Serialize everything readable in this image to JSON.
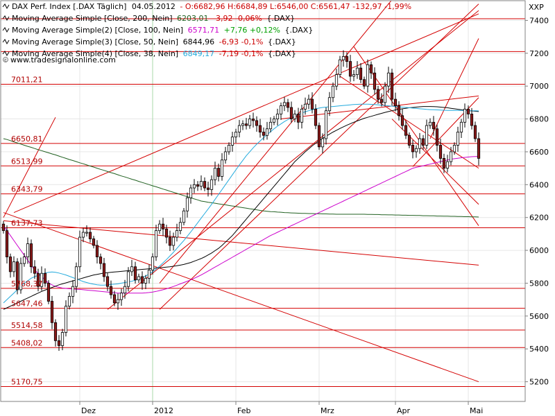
{
  "chart_data": {
    "type": "candlestick",
    "axis_unit_label": "XXP",
    "ylim": [
      5080,
      7520
    ],
    "y_ticks": [
      5200,
      5400,
      5600,
      5800,
      6000,
      6200,
      6400,
      6600,
      6800,
      7000,
      7200,
      7400
    ],
    "x_ticks": [
      {
        "label": "Dez",
        "index": 22
      },
      {
        "label": "2012",
        "index": 43
      },
      {
        "label": "Feb",
        "index": 67
      },
      {
        "label": "Mrz",
        "index": 91
      },
      {
        "label": "Apr",
        "index": 113
      },
      {
        "label": "Mai",
        "index": 134
      }
    ],
    "n_bars": 138,
    "legend": {
      "main": {
        "name": "DAX Perf. Index [.DAX Täglich]",
        "date": "04.05.2012",
        "values": "- O:6682,96 H:6684,89 L:6546,00 C:6561,47 -132,97 -1,99%"
      },
      "ma": [
        {
          "name": "Moving Average Simple [Close, 200, Nein]",
          "value": "6203,01",
          "change": "-3,92 -0,06%",
          "suffix": "{.DAX}",
          "color": "#206020",
          "change_color": "#cc0000"
        },
        {
          "name": "Moving Average Simple(2) [Close, 100, Nein]",
          "value": "6571,71",
          "change": "+7,76 +0,12%",
          "suffix": "{.DAX}",
          "color": "#cc00cc",
          "change_color": "#00a000"
        },
        {
          "name": "Moving Average Simple(3) [Close, 50, Nein]",
          "value": "6844,96",
          "change": "-6,93 -0,1%",
          "suffix": "{.DAX}",
          "color": "#000000",
          "change_color": "#cc0000"
        },
        {
          "name": "Moving Average Simple(4) [Close, 38, Nein]",
          "value": "6849,17",
          "change": "-7,19 -0,1%",
          "suffix": "{.DAX}",
          "color": "#22aadd",
          "change_color": "#cc0000"
        }
      ]
    },
    "website": "www.tradesignalonline.com",
    "horizontal_levels": [
      {
        "label": "7011,21",
        "value": 7011.21
      },
      {
        "label": "6650,81",
        "value": 6650.81
      },
      {
        "label": "6513,99",
        "value": 6513.99
      },
      {
        "label": "6343,79",
        "value": 6343.79
      },
      {
        "label": "6137,73",
        "value": 6137.73
      },
      {
        "label": "5768,37",
        "value": 5768.37
      },
      {
        "label": "5647,46",
        "value": 5647.46
      },
      {
        "label": "5514,58",
        "value": 5514.58
      },
      {
        "label": "5408,02",
        "value": 5408.02
      },
      {
        "label": "5170,75",
        "value": 5170.75
      }
    ],
    "extra_horizontal_lines": [
      7210,
      7410
    ],
    "trendlines": [
      {
        "from": [
          0,
          6180
        ],
        "to": [
          137,
          5910
        ]
      },
      {
        "from": [
          0,
          6230
        ],
        "to": [
          137,
          5200
        ]
      },
      {
        "from": [
          3,
          6230
        ],
        "to": [
          137,
          7440
        ]
      },
      {
        "from": [
          0,
          6200
        ],
        "to": [
          15,
          6810
        ]
      },
      {
        "from": [
          30,
          5640
        ],
        "to": [
          137,
          7460
        ]
      },
      {
        "from": [
          45,
          5640
        ],
        "to": [
          137,
          7500
        ]
      },
      {
        "from": [
          45,
          5800
        ],
        "to": [
          137,
          8170
        ]
      },
      {
        "from": [
          80,
          6800
        ],
        "to": [
          137,
          6940
        ]
      },
      {
        "from": [
          101,
          7240
        ],
        "to": [
          137,
          6150
        ]
      },
      {
        "from": [
          97,
          7060
        ],
        "to": [
          137,
          6500
        ]
      },
      {
        "from": [
          112,
          6800
        ],
        "to": [
          137,
          6280
        ]
      },
      {
        "from": [
          118,
          6510
        ],
        "to": [
          137,
          6930
        ]
      },
      {
        "from": [
          123,
          6680
        ],
        "to": [
          137,
          7290
        ]
      }
    ],
    "series": [
      {
        "name": "close",
        "values": [
          6120,
          5960,
          5870,
          5930,
          5760,
          5920,
          5960,
          6040,
          5900,
          5860,
          5780,
          5860,
          5800,
          5690,
          5560,
          5450,
          5420,
          5500,
          5660,
          5720,
          5780,
          5900,
          6080,
          6110,
          6110,
          6070,
          6030,
          5960,
          5920,
          5840,
          5780,
          5730,
          5680,
          5700,
          5740,
          5780,
          5870,
          5900,
          5820,
          5840,
          5800,
          5830,
          5880,
          5960,
          6120,
          6160,
          6130,
          6080,
          6030,
          6080,
          6120,
          6170,
          6240,
          6320,
          6380,
          6400,
          6390,
          6420,
          6380,
          6370,
          6430,
          6500,
          6450,
          6550,
          6600,
          6640,
          6690,
          6720,
          6760,
          6770,
          6760,
          6800,
          6790,
          6760,
          6720,
          6700,
          6740,
          6780,
          6800,
          6830,
          6880,
          6900,
          6870,
          6800,
          6830,
          6780,
          6860,
          6890,
          6920,
          6860,
          6760,
          6630,
          6680,
          6850,
          6930,
          7000,
          7070,
          7160,
          7180,
          7150,
          7060,
          7070,
          7110,
          7040,
          7000,
          7130,
          7080,
          6980,
          6920,
          6900,
          7000,
          7080,
          6920,
          6880,
          6820,
          6760,
          6700,
          6640,
          6600,
          6620,
          6680,
          6640,
          6760,
          6780,
          6740,
          6640,
          6560,
          6500,
          6540,
          6600,
          6640,
          6720,
          6780,
          6860,
          6830,
          6760,
          6680,
          6560
        ]
      },
      {
        "name": "ma200",
        "values": [
          6680,
          6675,
          6668,
          6660,
          6654,
          6647,
          6640,
          6633,
          6627,
          6620,
          6613,
          6607,
          6600,
          6594,
          6587,
          6581,
          6574,
          6567,
          6560,
          6553,
          6547,
          6540,
          6533,
          6527,
          6520,
          6513,
          6507,
          6500,
          6493,
          6487,
          6480,
          6473,
          6467,
          6460,
          6453,
          6447,
          6440,
          6433,
          6427,
          6420,
          6413,
          6407,
          6400,
          6393,
          6387,
          6380,
          6373,
          6367,
          6360,
          6353,
          6347,
          6340,
          6333,
          6327,
          6320,
          6313,
          6307,
          6300,
          6297,
          6293,
          6290,
          6287,
          6283,
          6280,
          6277,
          6273,
          6270,
          6267,
          6263,
          6260,
          6257,
          6253,
          6250,
          6247,
          6243,
          6240,
          6238,
          6236,
          6235,
          6233,
          6232,
          6230,
          6229,
          6228,
          6227,
          6226,
          6225,
          6225,
          6224,
          6224,
          6223,
          6223,
          6222,
          6222,
          6221,
          6221,
          6220,
          6220,
          6220,
          6220,
          6220,
          6220,
          6220,
          6220,
          6220,
          6219,
          6219,
          6218,
          6218,
          6217,
          6217,
          6216,
          6216,
          6215,
          6215,
          6214,
          6214,
          6213,
          6213,
          6212,
          6212,
          6211,
          6211,
          6210,
          6210,
          6209,
          6209,
          6208,
          6208,
          6207,
          6207,
          6206,
          6206,
          6205,
          6205,
          6204,
          6204,
          6203
        ]
      },
      {
        "name": "ma100",
        "values": [
          6150,
          6120,
          6090,
          6060,
          6030,
          6000,
          5970,
          5940,
          5910,
          5880,
          5860,
          5840,
          5820,
          5800,
          5790,
          5780,
          5775,
          5770,
          5768,
          5766,
          5765,
          5763,
          5762,
          5760,
          5758,
          5756,
          5754,
          5752,
          5750,
          5748,
          5746,
          5744,
          5742,
          5740,
          5740,
          5740,
          5740,
          5740,
          5740,
          5740,
          5740,
          5741,
          5743,
          5746,
          5750,
          5755,
          5760,
          5766,
          5773,
          5780,
          5788,
          5796,
          5804,
          5812,
          5820,
          5830,
          5840,
          5850,
          5862,
          5874,
          5886,
          5898,
          5910,
          5922,
          5934,
          5946,
          5958,
          5970,
          5982,
          5994,
          6006,
          6018,
          6030,
          6042,
          6054,
          6066,
          6078,
          6090,
          6100,
          6110,
          6120,
          6130,
          6140,
          6150,
          6160,
          6170,
          6180,
          6190,
          6200,
          6210,
          6220,
          6230,
          6240,
          6250,
          6260,
          6270,
          6280,
          6290,
          6300,
          6310,
          6320,
          6330,
          6340,
          6350,
          6360,
          6370,
          6380,
          6390,
          6400,
          6410,
          6420,
          6430,
          6440,
          6450,
          6460,
          6470,
          6480,
          6490,
          6500,
          6505,
          6510,
          6515,
          6520,
          6525,
          6530,
          6535,
          6540,
          6545,
          6550,
          6555,
          6558,
          6561,
          6564,
          6566,
          6568,
          6570,
          6571,
          6572
        ]
      },
      {
        "name": "ma50",
        "values": [
          5640,
          5650,
          5660,
          5670,
          5680,
          5690,
          5700,
          5710,
          5720,
          5730,
          5740,
          5750,
          5758,
          5766,
          5774,
          5782,
          5790,
          5796,
          5802,
          5808,
          5814,
          5820,
          5826,
          5832,
          5838,
          5844,
          5850,
          5854,
          5858,
          5862,
          5864,
          5866,
          5868,
          5870,
          5872,
          5874,
          5876,
          5878,
          5880,
          5882,
          5884,
          5886,
          5888,
          5890,
          5892,
          5894,
          5896,
          5898,
          5900,
          5903,
          5906,
          5910,
          5914,
          5920,
          5926,
          5934,
          5942,
          5950,
          5960,
          5972,
          5984,
          5998,
          6012,
          6030,
          6050,
          6070,
          6090,
          6115,
          6140,
          6165,
          6190,
          6215,
          6240,
          6265,
          6290,
          6315,
          6340,
          6365,
          6390,
          6415,
          6440,
          6465,
          6490,
          6515,
          6540,
          6560,
          6580,
          6600,
          6618,
          6636,
          6652,
          6668,
          6682,
          6695,
          6708,
          6720,
          6731,
          6742,
          6752,
          6762,
          6771,
          6780,
          6788,
          6796,
          6804,
          6810,
          6816,
          6822,
          6828,
          6834,
          6840,
          6845,
          6850,
          6855,
          6858,
          6862,
          6865,
          6868,
          6870,
          6872,
          6874,
          6876,
          6876,
          6876,
          6875,
          6874,
          6872,
          6870,
          6868,
          6865,
          6862,
          6859,
          6856,
          6853,
          6851,
          6849,
          6847,
          6845
        ]
      },
      {
        "name": "ma38",
        "values": [
          5680,
          5700,
          5720,
          5740,
          5760,
          5780,
          5800,
          5815,
          5830,
          5840,
          5848,
          5856,
          5862,
          5866,
          5868,
          5866,
          5862,
          5856,
          5850,
          5842,
          5834,
          5826,
          5818,
          5810,
          5804,
          5798,
          5794,
          5790,
          5788,
          5788,
          5790,
          5792,
          5794,
          5796,
          5800,
          5804,
          5808,
          5812,
          5818,
          5826,
          5834,
          5844,
          5856,
          5870,
          5886,
          5904,
          5924,
          5944,
          5966,
          5988,
          6012,
          6036,
          6060,
          6086,
          6112,
          6140,
          6168,
          6196,
          6224,
          6252,
          6280,
          6310,
          6340,
          6370,
          6400,
          6430,
          6460,
          6490,
          6520,
          6548,
          6576,
          6600,
          6624,
          6646,
          6666,
          6686,
          6704,
          6722,
          6740,
          6756,
          6770,
          6784,
          6796,
          6808,
          6818,
          6828,
          6836,
          6844,
          6850,
          6856,
          6862,
          6866,
          6870,
          6872,
          6874,
          6876,
          6878,
          6880,
          6882,
          6884,
          6886,
          6888,
          6889,
          6890,
          6890,
          6890,
          6889,
          6888,
          6886,
          6884,
          6882,
          6880,
          6878,
          6876,
          6874,
          6872,
          6870,
          6868,
          6866,
          6864,
          6862,
          6860,
          6858,
          6857,
          6856,
          6855,
          6854,
          6853,
          6852,
          6852,
          6852,
          6852,
          6852,
          6851,
          6851,
          6850,
          6850,
          6849
        ]
      }
    ]
  }
}
